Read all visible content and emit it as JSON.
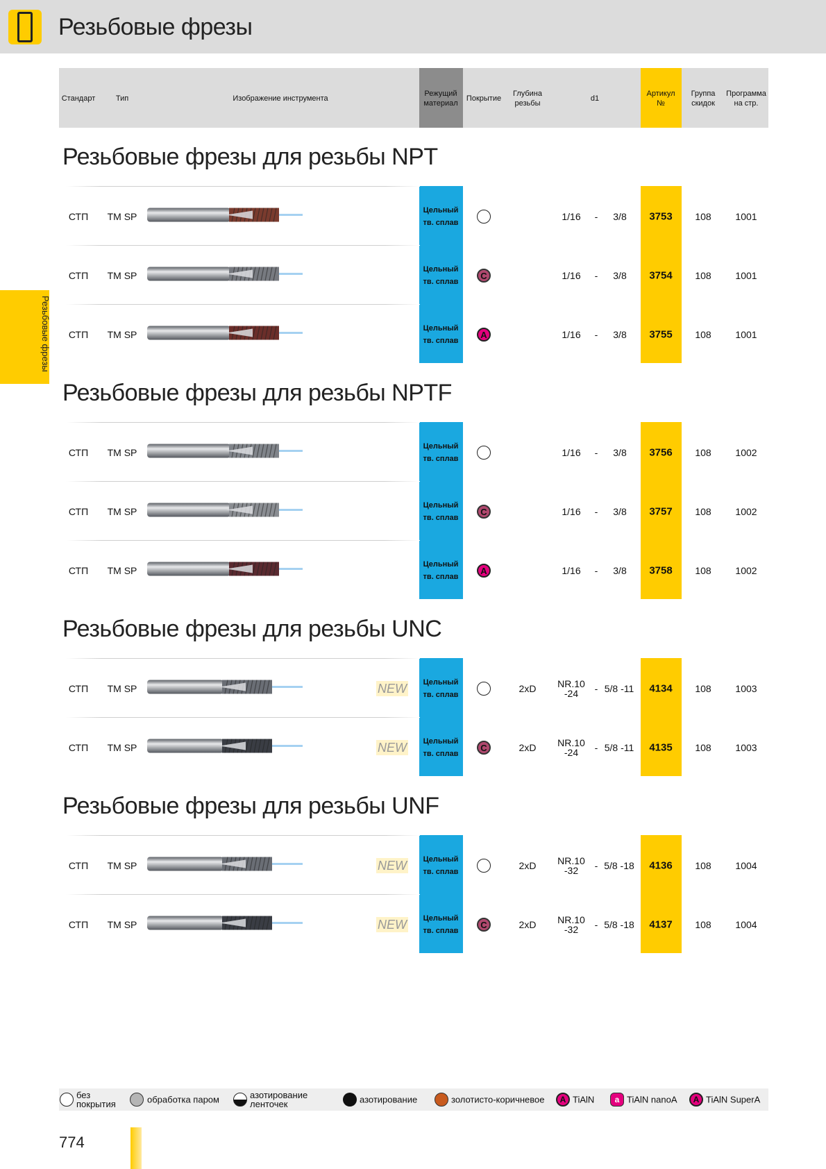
{
  "page_title": "Резьбовые фрезы",
  "side_tab": "Резьбовые фрезы",
  "page_number": "774",
  "header": {
    "standard": "Стандарт",
    "type": "Тип",
    "image": "Изображение инструмента",
    "material": [
      "Режущий",
      "материал"
    ],
    "coating": "Покрытие",
    "depth": [
      "Глубина",
      "резьбы"
    ],
    "d1": "d1",
    "article": [
      "Артикул",
      "№"
    ],
    "discount": [
      "Группа",
      "скидок"
    ],
    "program": [
      "Программа",
      "на стр."
    ]
  },
  "material_label": [
    "Цельный",
    "тв. сплав"
  ],
  "new_label": "NEW",
  "sections": [
    {
      "title": "Резьбовые фрезы для резьбы NPT",
      "rows": [
        {
          "standard": "СТП",
          "type": "TM SP",
          "new": false,
          "coating": "none",
          "coating_letter": "",
          "depth": "",
          "d1_from": "1/16",
          "dash": "-",
          "d1_to": "3/8",
          "article": "3753",
          "discount": "108",
          "program": "1001",
          "tool_color": "#7a3b2e"
        },
        {
          "standard": "СТП",
          "type": "TM SP",
          "new": false,
          "coating": "c",
          "coating_letter": "C",
          "depth": "",
          "d1_from": "1/16",
          "dash": "-",
          "d1_to": "3/8",
          "article": "3754",
          "discount": "108",
          "program": "1001",
          "tool_color": "#777a80"
        },
        {
          "standard": "СТП",
          "type": "TM SP",
          "new": false,
          "coating": "a",
          "coating_letter": "A",
          "depth": "",
          "d1_from": "1/16",
          "dash": "-",
          "d1_to": "3/8",
          "article": "3755",
          "discount": "108",
          "program": "1001",
          "tool_color": "#6b2e2a"
        }
      ]
    },
    {
      "title": "Резьбовые фрезы для резьбы NPTF",
      "rows": [
        {
          "standard": "СТП",
          "type": "TM SP",
          "new": false,
          "coating": "none",
          "coating_letter": "",
          "depth": "",
          "d1_from": "1/16",
          "dash": "-",
          "d1_to": "3/8",
          "article": "3756",
          "discount": "108",
          "program": "1002",
          "tool_color": "#80848a"
        },
        {
          "standard": "СТП",
          "type": "TM SP",
          "new": false,
          "coating": "c",
          "coating_letter": "C",
          "depth": "",
          "d1_from": "1/16",
          "dash": "-",
          "d1_to": "3/8",
          "article": "3757",
          "discount": "108",
          "program": "1002",
          "tool_color": "#8a8d92"
        },
        {
          "standard": "СТП",
          "type": "TM SP",
          "new": false,
          "coating": "a",
          "coating_letter": "A",
          "depth": "",
          "d1_from": "1/16",
          "dash": "-",
          "d1_to": "3/8",
          "article": "3758",
          "discount": "108",
          "program": "1002",
          "tool_color": "#5a2a30"
        }
      ]
    },
    {
      "title": "Резьбовые фрезы для резьбы UNC",
      "rows": [
        {
          "standard": "СТП",
          "type": "TM SP",
          "new": true,
          "coating": "none",
          "coating_letter": "",
          "depth": "2xD",
          "d1_from": "NR.10\n-24",
          "dash": "-",
          "d1_to": "5/8 -11",
          "article": "4134",
          "discount": "108",
          "program": "1003",
          "tool_color": "#6a6e75"
        },
        {
          "standard": "СТП",
          "type": "TM SP",
          "new": true,
          "coating": "c",
          "coating_letter": "C",
          "depth": "2xD",
          "d1_from": "NR.10\n-24",
          "dash": "-",
          "d1_to": "5/8 -11",
          "article": "4135",
          "discount": "108",
          "program": "1003",
          "tool_color": "#3a3d44"
        }
      ]
    },
    {
      "title": "Резьбовые фрезы для резьбы UNF",
      "rows": [
        {
          "standard": "СТП",
          "type": "TM SP",
          "new": true,
          "coating": "none",
          "coating_letter": "",
          "depth": "2xD",
          "d1_from": "NR.10\n-32",
          "dash": "-",
          "d1_to": "5/8 -18",
          "article": "4136",
          "discount": "108",
          "program": "1004",
          "tool_color": "#6a6e75"
        },
        {
          "standard": "СТП",
          "type": "TM SP",
          "new": true,
          "coating": "c",
          "coating_letter": "C",
          "depth": "2xD",
          "d1_from": "NR.10\n-32",
          "dash": "-",
          "d1_to": "5/8 -18",
          "article": "4137",
          "discount": "108",
          "program": "1004",
          "tool_color": "#3a3d44"
        }
      ]
    }
  ],
  "legend": [
    {
      "label": "без\nпокрытия",
      "symbol": "none",
      "letter": "",
      "color": "#ffffff"
    },
    {
      "label": "обработка паром",
      "symbol": "steam",
      "letter": "",
      "color": "#b5b5b5"
    },
    {
      "label": "азотирование\nленточек",
      "symbol": "half",
      "letter": "",
      "color": "#111111"
    },
    {
      "label": "азотирование",
      "symbol": "nitride",
      "letter": "",
      "color": "#111111"
    },
    {
      "label": "золотисто-коричневое",
      "symbol": "gold",
      "letter": "",
      "color": "#c85a1e"
    },
    {
      "label": "TiAlN",
      "symbol": "tialn",
      "letter": "A",
      "color": "#e5007e"
    },
    {
      "label": "TiAlN nanoA",
      "symbol": "nano",
      "letter": "a",
      "color": "#e5007e"
    },
    {
      "label": "TiAlN SuperA",
      "symbol": "super",
      "letter": "A",
      "color": "#e5007e"
    }
  ]
}
